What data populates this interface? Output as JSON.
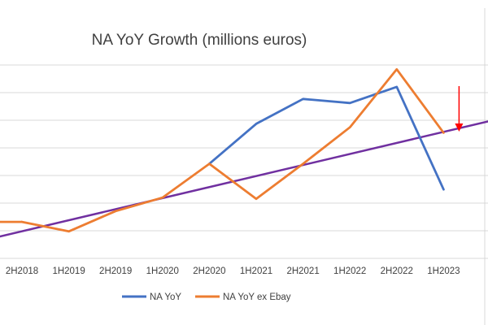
{
  "chart_data": {
    "type": "line",
    "title": "NA YoY Growth (millions euros)",
    "xlabel": "",
    "ylabel": "",
    "categories": [
      "2H2018",
      "1H2019",
      "2H2019",
      "1H2020",
      "2H2020",
      "1H2021",
      "2H2021",
      "1H2022",
      "2H2022",
      "1H2023"
    ],
    "ylim": [
      0,
      8
    ],
    "grid": true,
    "legend": "bottom",
    "series": [
      {
        "name": "NA YoY",
        "color": "#4472c4",
        "values": [
          null,
          null,
          null,
          null,
          3.5,
          4.98,
          5.9,
          5.75,
          6.35,
          2.55
        ]
      },
      {
        "name": "NA YoY ex Ebay",
        "color": "#ed7d31",
        "values": [
          1.35,
          1.0,
          1.75,
          2.25,
          3.5,
          2.2,
          3.5,
          4.85,
          7.0,
          4.65
        ]
      }
    ],
    "trendline": {
      "color": "#7030a0",
      "start_value": 1.05,
      "slope_per_category": 0.4
    },
    "annotation": {
      "type": "arrow",
      "color": "#ff0000",
      "target": "1H2023",
      "direction": "down"
    }
  }
}
